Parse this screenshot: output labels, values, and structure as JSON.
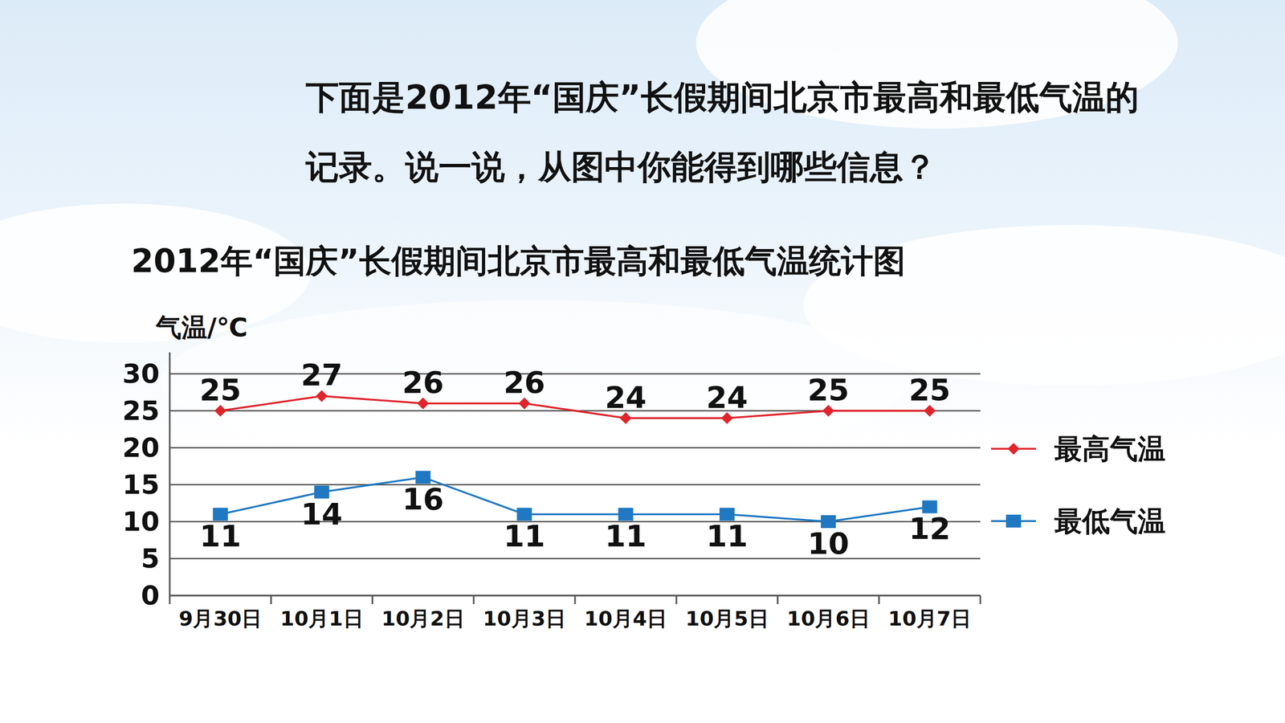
{
  "question_lines": [
    "下面是2012年“国庆”长假期间北京市最高和最低气温的",
    "记录。说一说，从图中你能得到哪些信息？"
  ],
  "chart_data": {
    "type": "line",
    "title": "2012年“国庆”长假期间北京市最高和最低气温统计图",
    "y_label": "气温/℃",
    "categories": [
      "9月30日",
      "10月1日",
      "10月2日",
      "10月3日",
      "10月4日",
      "10月5日",
      "10月6日",
      "10月7日"
    ],
    "series": [
      {
        "name": "最高气温",
        "color": "#e0242c",
        "marker": "diamond",
        "values": [
          25,
          27,
          26,
          26,
          24,
          24,
          25,
          25
        ]
      },
      {
        "name": "最低气温",
        "color": "#1f78c1",
        "marker": "square",
        "values": [
          11,
          14,
          16,
          11,
          11,
          11,
          10,
          12
        ]
      }
    ],
    "ylim": [
      0,
      30
    ],
    "yticks": [
      0,
      5,
      10,
      15,
      20,
      25,
      30
    ],
    "grid": true,
    "legend": "right",
    "data_labels": true
  }
}
